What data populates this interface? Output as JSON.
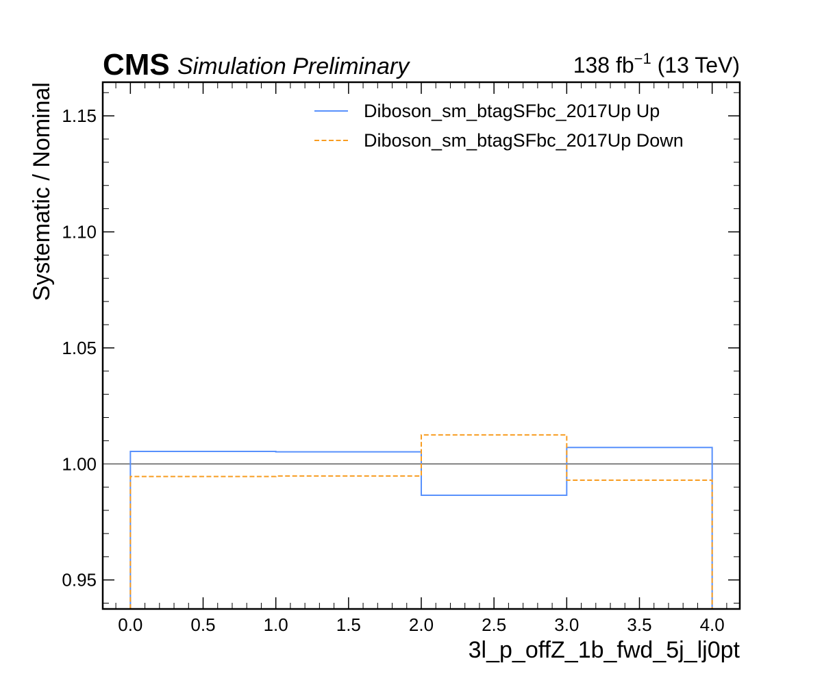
{
  "header": {
    "experiment": "CMS",
    "status": "Simulation Preliminary",
    "lumi_value": "138 fb",
    "lumi_exp": "−1",
    "energy": " (13 TeV)"
  },
  "chart_data": {
    "type": "line",
    "style": "step-histogram",
    "xlabel": "3l_p_offZ_1b_fwd_5j_lj0pt",
    "ylabel": "Systematic / Nominal",
    "xlim": [
      -0.19,
      4.19
    ],
    "ylim": [
      0.9375,
      1.1645
    ],
    "bin_edges": [
      0,
      1,
      2,
      3,
      4
    ],
    "x_ticks": [
      0.0,
      0.5,
      1.0,
      1.5,
      2.0,
      2.5,
      3.0,
      3.5,
      4.0
    ],
    "x_tick_labels": [
      "0.0",
      "0.5",
      "1.0",
      "1.5",
      "2.0",
      "2.5",
      "3.0",
      "3.5",
      "4.0"
    ],
    "y_ticks": [
      0.95,
      1.0,
      1.05,
      1.1,
      1.15
    ],
    "y_tick_labels": [
      "0.95",
      "1.00",
      "1.05",
      "1.10",
      "1.15"
    ],
    "reference_line": 1.0,
    "reference_color": "#808080",
    "series": [
      {
        "name": "Diboson_sm_btagSFbc_2017Up Up",
        "values": [
          1.0054,
          1.0052,
          0.9865,
          1.0071
        ],
        "color": "#5790fc",
        "dash": "solid"
      },
      {
        "name": "Diboson_sm_btagSFbc_2017Up Down",
        "values": [
          0.9946,
          0.9948,
          1.0125,
          0.993
        ],
        "color": "#f89c20",
        "dash": "dashed"
      }
    ],
    "legend_position": "top-right",
    "grid": false
  }
}
